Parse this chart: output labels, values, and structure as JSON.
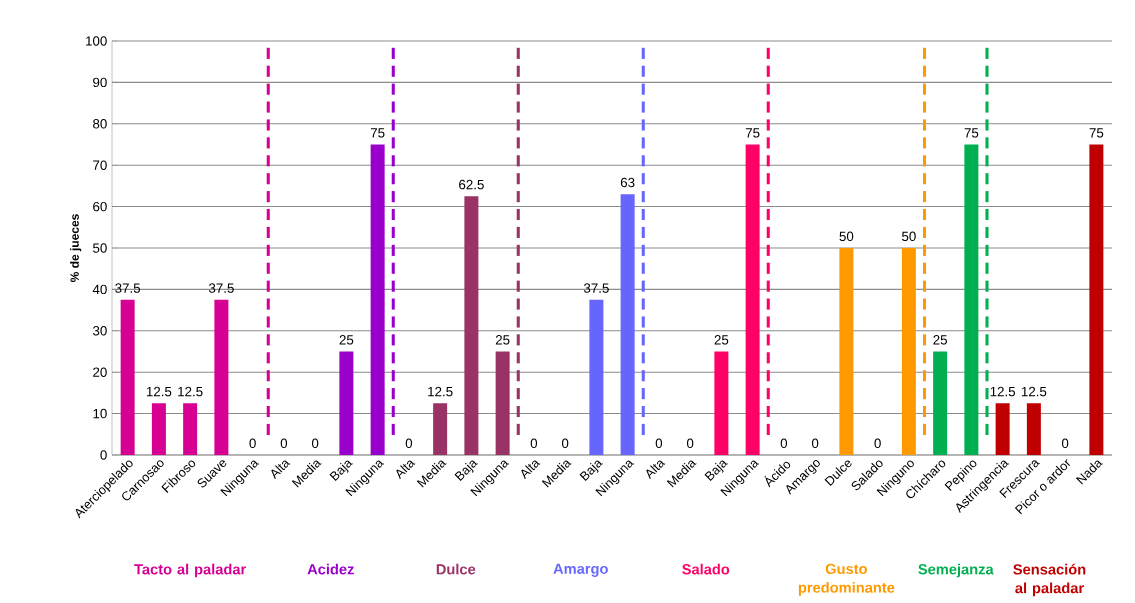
{
  "chart_data": {
    "type": "bar",
    "ylabel": "% de jueces",
    "categories": [
      "Aterciopelado",
      "Carnosao",
      "Fibroso",
      "Suave",
      "Ninguna",
      "Alta",
      "Media",
      "Baja",
      "Ninguna",
      "Alta",
      "Media",
      "Baja",
      "Ninguna",
      "Alta",
      "Media",
      "Baja",
      "Ninguna",
      "Alta",
      "Media",
      "Baja",
      "Ninguna",
      "Ácido",
      "Amargo",
      "Dulce",
      "Salado",
      "Ninguno",
      "Chícharo",
      "Pepino",
      "Astringencia",
      "Frescura",
      "Picor o ardor",
      "Nada"
    ],
    "values": [
      37.5,
      12.5,
      12.5,
      37.5,
      0,
      0,
      0,
      25,
      75,
      0,
      12.5,
      62.5,
      25,
      0,
      0,
      37.5,
      63,
      0,
      0,
      25,
      75,
      0,
      0,
      50,
      0,
      50,
      25,
      75,
      12.5,
      12.5,
      0,
      75
    ],
    "colors": [
      "#d60093",
      "#d60093",
      "#d60093",
      "#d60093",
      "#d60093",
      "#9900cc",
      "#9900cc",
      "#9900cc",
      "#9900cc",
      "#993366",
      "#993366",
      "#993366",
      "#993366",
      "#6666ff",
      "#6666ff",
      "#6666ff",
      "#6666ff",
      "#ff0066",
      "#ff0066",
      "#ff0066",
      "#ff0066",
      "#ff9900",
      "#ff9900",
      "#ff9900",
      "#ff9900",
      "#ff9900",
      "#00b050",
      "#00b050",
      "#c00000",
      "#c00000",
      "#c00000",
      "#c00000"
    ],
    "ylim": [
      0,
      100
    ],
    "yticks": [
      0,
      10,
      20,
      30,
      40,
      50,
      60,
      70,
      80,
      90,
      100
    ],
    "grid": "y",
    "data_labels": true,
    "annotations": [
      "Tacto al paladar",
      "Acidez",
      "Dulce",
      "Amargo",
      "Salado",
      "Gusto predominante",
      "Semejanza",
      "Sensación al paladar"
    ]
  }
}
